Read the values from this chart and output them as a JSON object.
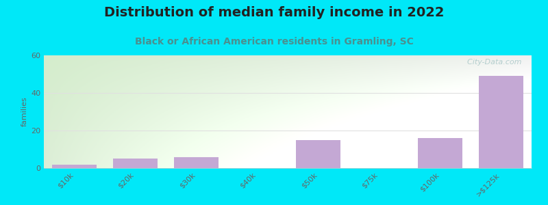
{
  "title": "Distribution of median family income in 2022",
  "subtitle": "Black or African American residents in Gramling, SC",
  "categories": [
    "$10k",
    "$20k",
    "$30k",
    "$40k",
    "$50k",
    "$75k",
    "$100k",
    ">$125k"
  ],
  "values": [
    2,
    5,
    6,
    0,
    15,
    0,
    16,
    49
  ],
  "bar_color": "#c4a8d4",
  "ylabel": "families",
  "ylim": [
    0,
    60
  ],
  "yticks": [
    0,
    20,
    40,
    60
  ],
  "background_outer": "#00e8f8",
  "bg_grad_top_left": "#d4edcc",
  "bg_grad_right": "#f0f0f0",
  "title_fontsize": 14,
  "subtitle_fontsize": 10,
  "subtitle_color": "#4a9090",
  "watermark_text": "  City-Data.com",
  "watermark_color": "#aac8c8",
  "grid_color": "#e0e0e0"
}
